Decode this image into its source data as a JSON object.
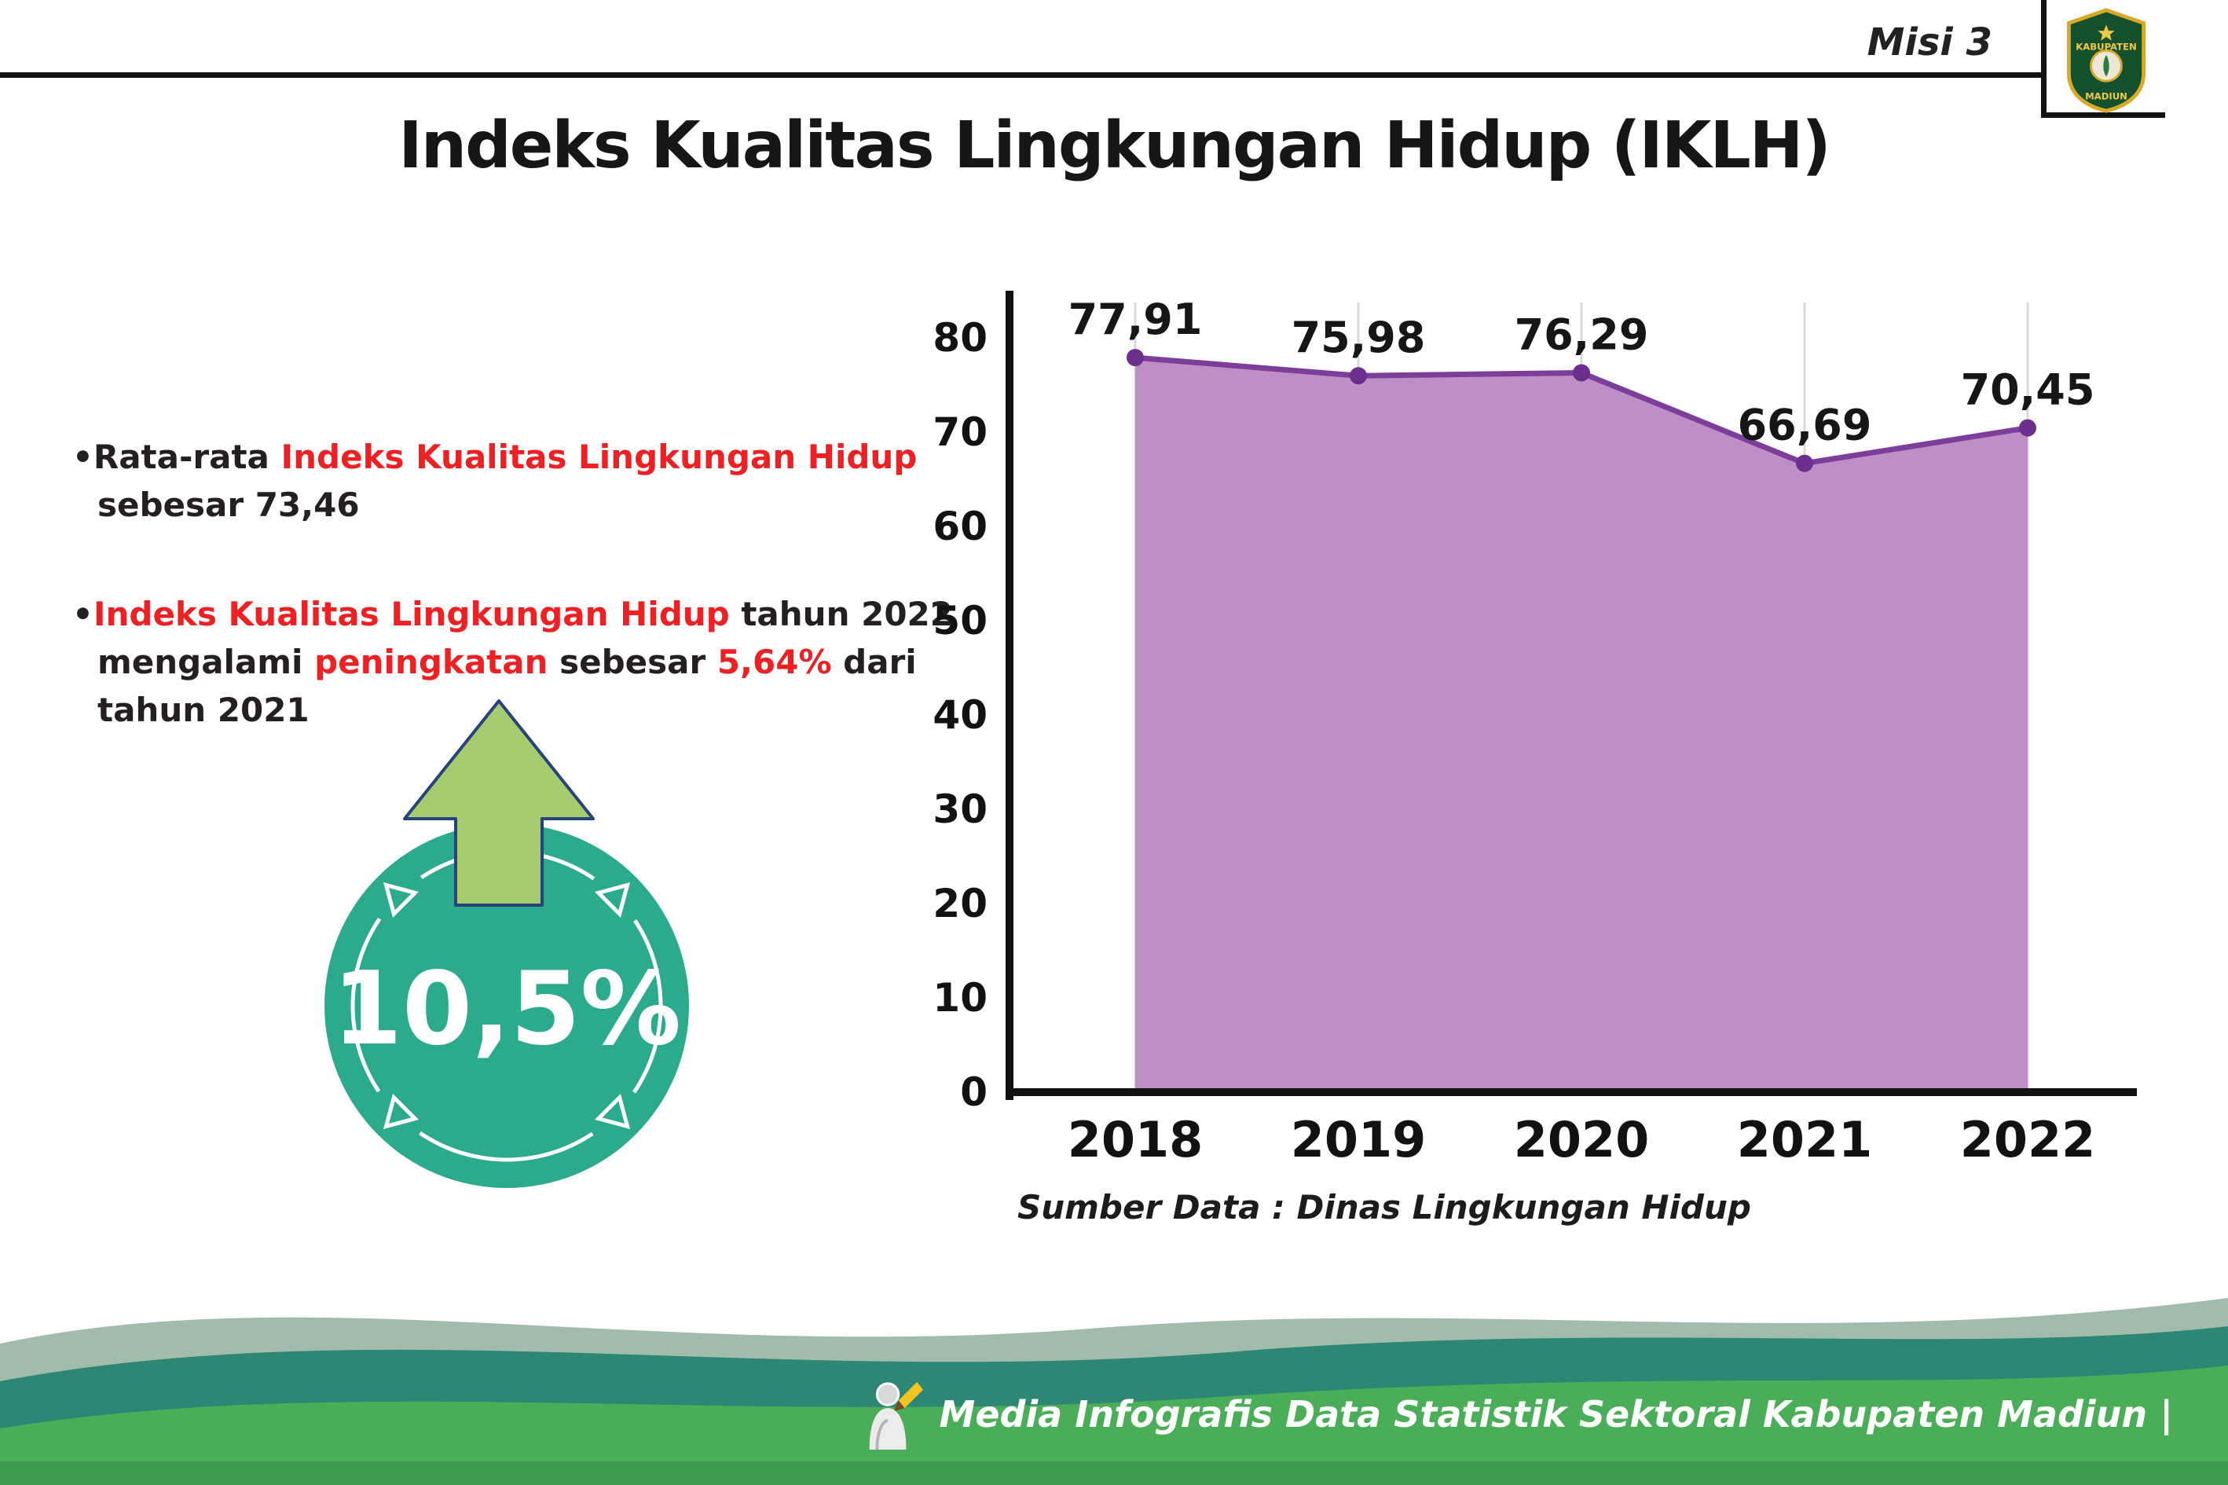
{
  "page": {
    "misi": "Misi 3",
    "title": "Indeks Kualitas Lingkungan Hidup (IKLH)"
  },
  "logo": {
    "top_text": "KABUPATEN",
    "bottom_text": "MADIUN"
  },
  "bullets": {
    "dot": "•",
    "b1": {
      "pre": "Rata-rata ",
      "red1": "Indeks Kualitas Lingkungan Hidup",
      "post": " sebesar 73,46"
    },
    "b2": {
      "red1": "Indeks Kualitas Lingkungan Hidup",
      "mid1": " tahun 2022 mengalami ",
      "red2": "peningkatan",
      "mid2": " sebesar ",
      "red3": "5,64%",
      "post": " dari tahun 2021"
    }
  },
  "badge": {
    "value": "10,5%"
  },
  "chart_data": {
    "type": "area",
    "title": "Indeks Kualitas Lingkungan Hidup (IKLH)",
    "categories": [
      "2018",
      "2019",
      "2020",
      "2021",
      "2022"
    ],
    "values": [
      77.91,
      75.98,
      76.29,
      66.69,
      70.45
    ],
    "value_labels": [
      "77,91",
      "75,98",
      "76,29",
      "66,69",
      "70,45"
    ],
    "ylim": [
      0,
      80
    ],
    "yticks": [
      0,
      10,
      20,
      30,
      40,
      50,
      60,
      70,
      80
    ],
    "grid": "vertical",
    "legend": "none",
    "area_color": "#bd8fc6",
    "line_color": "#7c3e99",
    "point_color": "#6d2f8e",
    "source": "Sumber Data : Dinas Lingkungan Hidup"
  },
  "footer": {
    "caption": "Media Infografis Data Statistik Sektoral Kabupaten Madiun |"
  },
  "colors": {
    "accent_red": "#ed2024",
    "badge_teal": "#2bab8c",
    "arrow_green": "#a6cc70",
    "arrow_outline_navy": "#27427c",
    "footer_green": "#4aad58",
    "footer_teal": "#2e8674",
    "footer_sage": "#a2bcab"
  }
}
